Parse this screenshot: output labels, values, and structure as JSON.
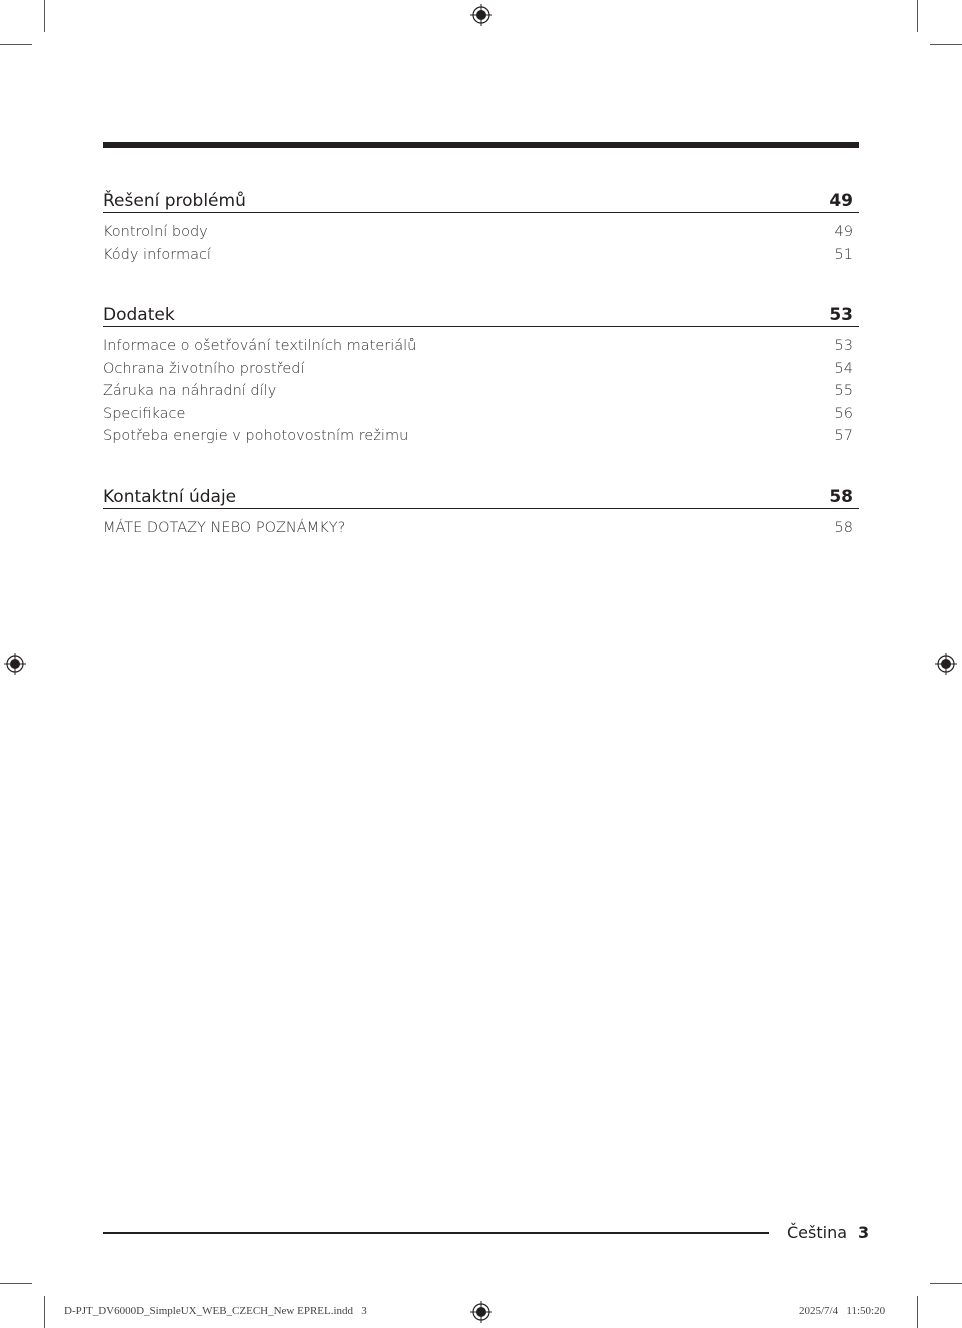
{
  "toc": [
    {
      "title": "Řešení problémů",
      "page": "49",
      "items": [
        {
          "label": "Kontrolní body",
          "page": "49"
        },
        {
          "label": "Kódy informací",
          "page": "51"
        }
      ]
    },
    {
      "title": "Dodatek",
      "page": "53",
      "items": [
        {
          "label": "Informace o ošetřování textilních materiálů",
          "page": "53"
        },
        {
          "label": "Ochrana životního prostředí",
          "page": "54"
        },
        {
          "label": "Záruka na náhradní díly",
          "page": "55"
        },
        {
          "label": "Specifikace",
          "page": "56"
        },
        {
          "label": "Spotřeba energie v pohotovostním režimu",
          "page": "57"
        }
      ]
    },
    {
      "title": "Kontaktní údaje",
      "page": "58",
      "items": [
        {
          "label": "MÁTE DOTAZY NEBO POZNÁMKY?",
          "page": "58"
        }
      ]
    }
  ],
  "footer": {
    "language": "Čeština",
    "page_number": "3"
  },
  "slug": {
    "file": "D-PJT_DV6000D_SimpleUX_WEB_CZECH_New EPREL.indd   3",
    "datetime": "2025/7/4   11:50:20"
  }
}
